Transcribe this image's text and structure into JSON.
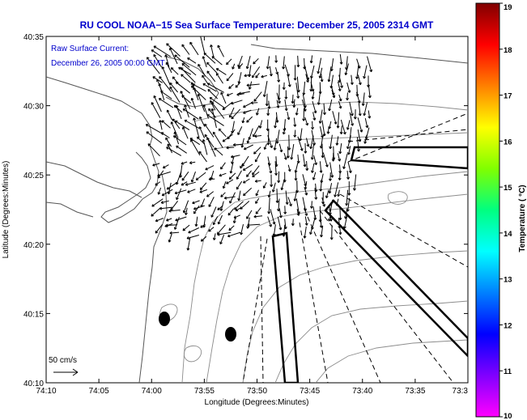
{
  "title": "RU COOL  NOAA−15  Sea Surface Temperature:  December 25, 2005 2314 GMT",
  "current_label": "Raw Surface Current:",
  "current_time": "December 26, 2005 00:00 GMT",
  "scale_label": "50 cm/s",
  "x_axis": {
    "label": "Longitude (Degrees:Minutes)",
    "ticks": [
      "74:10",
      "74:05",
      "74:00",
      "73:55",
      "73:50",
      "73:45",
      "73:40",
      "73:35",
      "73:3"
    ]
  },
  "y_axis": {
    "label": "Latitude (Degrees:Minutes)",
    "ticks": [
      "40:35",
      "40:30",
      "40:25",
      "40:20",
      "40:15",
      "40:10"
    ]
  },
  "colorbar": {
    "label": "Temperature ( °C)",
    "ticks": [
      "19",
      "18",
      "17",
      "16",
      "15",
      "14",
      "13",
      "12",
      "11",
      "10"
    ],
    "colors": [
      "#ff00ff",
      "#8000ff",
      "#0000ff",
      "#0080ff",
      "#00ffff",
      "#00ff80",
      "#80ff00",
      "#ffff00",
      "#ff8000",
      "#ff0000",
      "#800000"
    ]
  },
  "colors": {
    "title_text": "#0000cc",
    "land_outline": "#555555",
    "bathymetry": "#8c8c8c"
  }
}
